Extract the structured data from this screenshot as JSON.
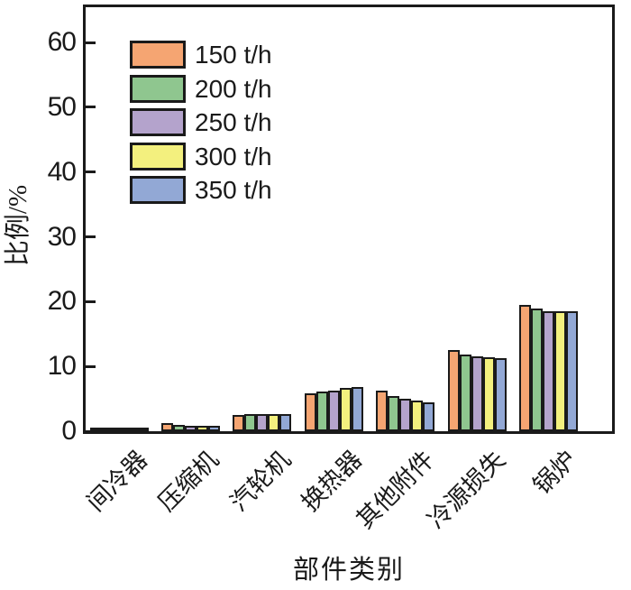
{
  "chart_data": {
    "type": "bar",
    "title": "",
    "xlabel": "部件类别",
    "ylabel": "比例/%",
    "ylim": [
      0,
      65.5
    ],
    "yticks": [
      0,
      10,
      20,
      30,
      40,
      50,
      60
    ],
    "grid": false,
    "legend_position": "upper-left-inside",
    "bar_outline_color": "#1a1a1a",
    "categories": [
      "间冷器",
      "压缩机",
      "汽轮机",
      "换热器",
      "其他附件",
      "冷源损失",
      "锅炉"
    ],
    "series": [
      {
        "name": "150 t/h",
        "color": "#F5A572",
        "values": [
          0.3,
          1.0,
          2.2,
          5.6,
          6.0,
          12.2,
          19.2
        ]
      },
      {
        "name": "200 t/h",
        "color": "#8FC68F",
        "values": [
          0.25,
          0.75,
          2.3,
          5.9,
          5.2,
          11.6,
          18.7
        ]
      },
      {
        "name": "250 t/h",
        "color": "#B4A3CC",
        "values": [
          0.22,
          0.6,
          2.3,
          6.0,
          4.8,
          11.3,
          18.3
        ]
      },
      {
        "name": "300 t/h",
        "color": "#F3F07E",
        "values": [
          0.2,
          0.5,
          2.35,
          6.4,
          4.4,
          11.1,
          18.3
        ]
      },
      {
        "name": "350 t/h",
        "color": "#92A8D5",
        "values": [
          0.2,
          0.5,
          2.35,
          6.5,
          4.2,
          11.0,
          18.2
        ]
      }
    ]
  }
}
